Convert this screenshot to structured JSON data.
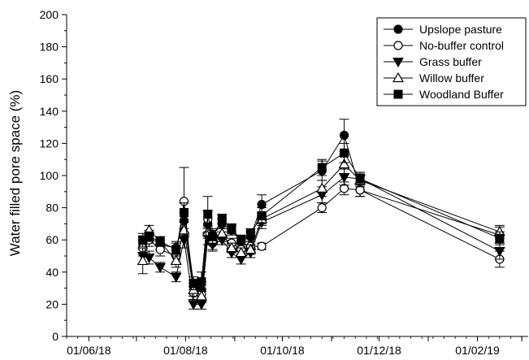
{
  "chart_data": {
    "type": "line",
    "title": "",
    "xlabel": "",
    "ylabel": "Water filled pore space (%)",
    "ylim": [
      0,
      200
    ],
    "y_ticks": [
      0,
      20,
      40,
      60,
      80,
      100,
      120,
      140,
      160,
      180,
      200
    ],
    "xlim": [
      "2018-05-18",
      "2019-03-05"
    ],
    "x_tick_labels": [
      {
        "date": "2018-06-01",
        "label": "01/06/18"
      },
      {
        "date": "2018-08-01",
        "label": "01/08/18"
      },
      {
        "date": "2018-10-01",
        "label": "01/10/18"
      },
      {
        "date": "2018-12-01",
        "label": "01/12/18"
      },
      {
        "date": "2019-02-01",
        "label": "01/02/19"
      }
    ],
    "x_minor_ticks": [
      "2018-07-01",
      "2018-09-01",
      "2018-11-01",
      "2019-01-01",
      "2019-03-01"
    ],
    "legend": {
      "position": "top-right",
      "entries": [
        "Upslope pasture",
        "No-buffer control",
        "Grass buffer",
        "Willow buffer",
        "Woodland Buffer"
      ]
    },
    "series": [
      {
        "name": "Upslope pasture",
        "marker": "filled-circle",
        "points": [
          {
            "x": "2018-07-05",
            "y": 58,
            "err": 4
          },
          {
            "x": "2018-07-09",
            "y": 62,
            "err": 4
          },
          {
            "x": "2018-07-16",
            "y": 57,
            "err": 3
          },
          {
            "x": "2018-07-26",
            "y": 55,
            "err": 4
          },
          {
            "x": "2018-07-31",
            "y": 72,
            "err": 5
          },
          {
            "x": "2018-08-06",
            "y": 31,
            "err": 4
          },
          {
            "x": "2018-08-11",
            "y": 29,
            "err": 5
          },
          {
            "x": "2018-08-15",
            "y": 70,
            "err": 8
          },
          {
            "x": "2018-08-18",
            "y": 63,
            "err": 4
          },
          {
            "x": "2018-08-24",
            "y": 70,
            "err": 3
          },
          {
            "x": "2018-08-30",
            "y": 66,
            "err": 3
          },
          {
            "x": "2018-09-05",
            "y": 59,
            "err": 3
          },
          {
            "x": "2018-09-11",
            "y": 62,
            "err": 3
          },
          {
            "x": "2018-09-18",
            "y": 82,
            "err": 6
          },
          {
            "x": "2018-10-26",
            "y": 103,
            "err": 6
          },
          {
            "x": "2018-11-09",
            "y": 125,
            "err": 10
          },
          {
            "x": "2018-11-19",
            "y": 91,
            "err": 4
          },
          {
            "x": "2019-02-15",
            "y": 63,
            "err": 5
          }
        ]
      },
      {
        "name": "No-buffer control",
        "marker": "open-circle",
        "points": [
          {
            "x": "2018-07-05",
            "y": 55,
            "err": 5
          },
          {
            "x": "2018-07-09",
            "y": 60,
            "err": 4
          },
          {
            "x": "2018-07-16",
            "y": 54,
            "err": 4
          },
          {
            "x": "2018-07-26",
            "y": 50,
            "err": 4
          },
          {
            "x": "2018-07-31",
            "y": 84,
            "err": 21
          },
          {
            "x": "2018-08-06",
            "y": 27,
            "err": 4
          },
          {
            "x": "2018-08-11",
            "y": 26,
            "err": 4
          },
          {
            "x": "2018-08-15",
            "y": 73,
            "err": 5
          },
          {
            "x": "2018-08-18",
            "y": 58,
            "err": 4
          },
          {
            "x": "2018-08-24",
            "y": 62,
            "err": 3
          },
          {
            "x": "2018-08-30",
            "y": 58,
            "err": 3
          },
          {
            "x": "2018-09-05",
            "y": 54,
            "err": 3
          },
          {
            "x": "2018-09-11",
            "y": 56,
            "err": 3
          },
          {
            "x": "2018-09-18",
            "y": 56,
            "err": 2
          },
          {
            "x": "2018-10-26",
            "y": 80,
            "err": 3
          },
          {
            "x": "2018-11-09",
            "y": 92,
            "err": 4
          },
          {
            "x": "2018-11-19",
            "y": 91,
            "err": 4
          },
          {
            "x": "2019-02-15",
            "y": 48,
            "err": 5
          }
        ]
      },
      {
        "name": "Grass buffer",
        "marker": "filled-triangle-down",
        "points": [
          {
            "x": "2018-07-05",
            "y": 50,
            "err": 5
          },
          {
            "x": "2018-07-09",
            "y": 49,
            "err": 4
          },
          {
            "x": "2018-07-16",
            "y": 43,
            "err": 3
          },
          {
            "x": "2018-07-26",
            "y": 37,
            "err": 3
          },
          {
            "x": "2018-07-31",
            "y": 60,
            "err": 5
          },
          {
            "x": "2018-08-06",
            "y": 20,
            "err": 3
          },
          {
            "x": "2018-08-11",
            "y": 20,
            "err": 3
          },
          {
            "x": "2018-08-15",
            "y": 62,
            "err": 5
          },
          {
            "x": "2018-08-18",
            "y": 57,
            "err": 4
          },
          {
            "x": "2018-08-24",
            "y": 60,
            "err": 3
          },
          {
            "x": "2018-08-30",
            "y": 52,
            "err": 3
          },
          {
            "x": "2018-09-05",
            "y": 48,
            "err": 3
          },
          {
            "x": "2018-09-11",
            "y": 52,
            "err": 3
          },
          {
            "x": "2018-09-18",
            "y": 71,
            "err": 4
          },
          {
            "x": "2018-10-26",
            "y": 88,
            "err": 5
          },
          {
            "x": "2018-11-09",
            "y": 99,
            "err": 5
          },
          {
            "x": "2018-11-19",
            "y": 98,
            "err": 4
          },
          {
            "x": "2019-02-15",
            "y": 53,
            "err": 5
          }
        ]
      },
      {
        "name": "Willow buffer",
        "marker": "open-triangle-up",
        "points": [
          {
            "x": "2018-07-05",
            "y": 47,
            "err": 8
          },
          {
            "x": "2018-07-09",
            "y": 66,
            "err": 3
          },
          {
            "x": "2018-07-16",
            "y": 59,
            "err": 3
          },
          {
            "x": "2018-07-26",
            "y": 47,
            "err": 4
          },
          {
            "x": "2018-07-31",
            "y": 66,
            "err": 5
          },
          {
            "x": "2018-08-06",
            "y": 29,
            "err": 4
          },
          {
            "x": "2018-08-11",
            "y": 25,
            "err": 4
          },
          {
            "x": "2018-08-15",
            "y": 65,
            "err": 4
          },
          {
            "x": "2018-08-18",
            "y": 60,
            "err": 3
          },
          {
            "x": "2018-08-24",
            "y": 64,
            "err": 3
          },
          {
            "x": "2018-08-30",
            "y": 55,
            "err": 3
          },
          {
            "x": "2018-09-05",
            "y": 52,
            "err": 3
          },
          {
            "x": "2018-09-11",
            "y": 54,
            "err": 3
          },
          {
            "x": "2018-09-18",
            "y": 73,
            "err": 4
          },
          {
            "x": "2018-10-26",
            "y": 92,
            "err": 5
          },
          {
            "x": "2018-11-09",
            "y": 107,
            "err": 6
          },
          {
            "x": "2018-11-19",
            "y": 97,
            "err": 4
          },
          {
            "x": "2019-02-15",
            "y": 65,
            "err": 4
          }
        ]
      },
      {
        "name": "Woodland Buffer",
        "marker": "filled-square",
        "points": [
          {
            "x": "2018-07-05",
            "y": 60,
            "err": 4
          },
          {
            "x": "2018-07-09",
            "y": 62,
            "err": 3
          },
          {
            "x": "2018-07-16",
            "y": 59,
            "err": 3
          },
          {
            "x": "2018-07-26",
            "y": 54,
            "err": 4
          },
          {
            "x": "2018-07-31",
            "y": 77,
            "err": 6
          },
          {
            "x": "2018-08-06",
            "y": 33,
            "err": 4
          },
          {
            "x": "2018-08-11",
            "y": 34,
            "err": 6
          },
          {
            "x": "2018-08-15",
            "y": 76,
            "err": 11
          },
          {
            "x": "2018-08-18",
            "y": 62,
            "err": 4
          },
          {
            "x": "2018-08-24",
            "y": 73,
            "err": 3
          },
          {
            "x": "2018-08-30",
            "y": 67,
            "err": 3
          },
          {
            "x": "2018-09-05",
            "y": 60,
            "err": 3
          },
          {
            "x": "2018-09-11",
            "y": 64,
            "err": 3
          },
          {
            "x": "2018-09-18",
            "y": 75,
            "err": 5
          },
          {
            "x": "2018-10-26",
            "y": 105,
            "err": 5
          },
          {
            "x": "2018-11-09",
            "y": 114,
            "err": 6
          },
          {
            "x": "2018-11-19",
            "y": 98,
            "err": 4
          },
          {
            "x": "2019-02-15",
            "y": 61,
            "err": 4
          }
        ]
      }
    ]
  }
}
